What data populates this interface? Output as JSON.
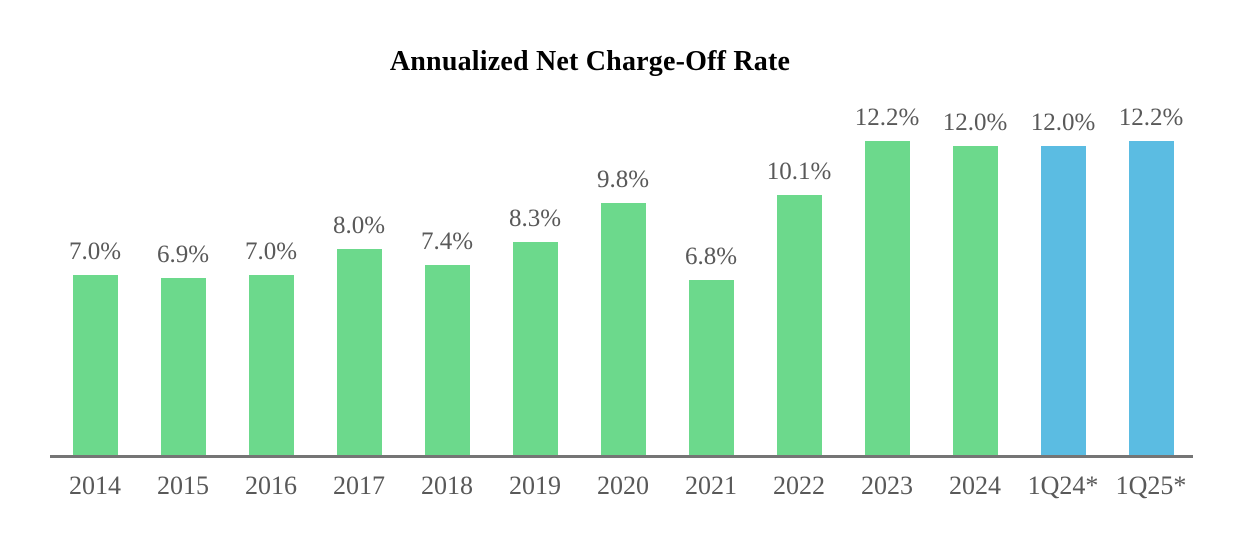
{
  "chart_data": {
    "type": "bar",
    "title": "Annualized Net Charge-Off Rate",
    "categories": [
      "2014",
      "2015",
      "2016",
      "2017",
      "2018",
      "2019",
      "2020",
      "2021",
      "2022",
      "2023",
      "2024",
      "1Q24*",
      "1Q25*"
    ],
    "values": [
      7.0,
      6.9,
      7.0,
      8.0,
      7.4,
      8.3,
      9.8,
      6.8,
      10.1,
      12.2,
      12.0,
      12.0,
      12.2
    ],
    "value_labels": [
      "7.0%",
      "6.9%",
      "7.0%",
      "8.0%",
      "7.4%",
      "8.3%",
      "9.8%",
      "6.8%",
      "10.1%",
      "12.2%",
      "12.0%",
      "12.0%",
      "12.2%"
    ],
    "bar_color_keys": [
      "green",
      "green",
      "green",
      "green",
      "green",
      "green",
      "green",
      "green",
      "green",
      "green",
      "green",
      "blue",
      "blue"
    ],
    "colors": {
      "green": "#6CD98C",
      "blue": "#5BBCE2",
      "label": "#595959",
      "axis": "#757575",
      "title": "#000000"
    },
    "xlabel": "",
    "ylabel": "",
    "ylim": [
      0,
      13.8
    ],
    "grid": false,
    "legend_position": "none",
    "y_axis_visible": false,
    "x_axis_visible": true
  }
}
